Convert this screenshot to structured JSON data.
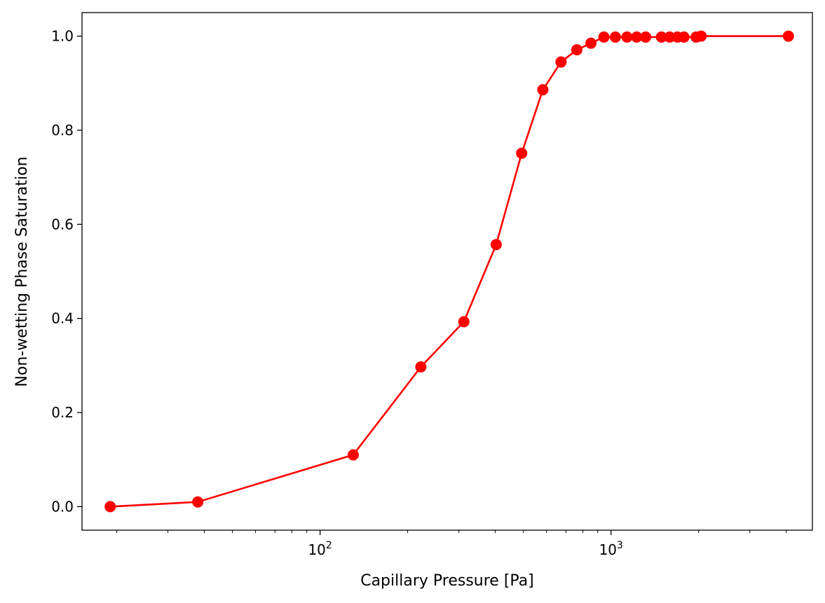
{
  "chart_data": {
    "type": "line",
    "title": "",
    "xlabel": "Capillary Pressure [Pa]",
    "ylabel": "Non-wetting Phase Saturation",
    "xscale": "log",
    "xlim": [
      15.2,
      4920
    ],
    "ylim": [
      -0.05,
      1.05
    ],
    "x_tick_labels": [
      {
        "base": "10",
        "exp": "2",
        "value": 100
      },
      {
        "base": "10",
        "exp": "3",
        "value": 1000
      }
    ],
    "y_tick_labels": [
      "0.0",
      "0.2",
      "0.4",
      "0.6",
      "0.8",
      "1.0"
    ],
    "y_tick_values": [
      0.0,
      0.2,
      0.4,
      0.6,
      0.8,
      1.0
    ],
    "grid": false,
    "legend": "none",
    "series": [
      {
        "color": "#ff0000",
        "marker": "circle",
        "x": [
          19,
          38,
          130,
          222,
          312,
          403,
          493,
          583,
          673,
          763,
          853,
          945,
          1035,
          1135,
          1225,
          1315,
          1490,
          1590,
          1690,
          1780,
          1960,
          2040,
          4070
        ],
        "y": [
          0.0,
          0.01,
          0.11,
          0.297,
          0.393,
          0.557,
          0.751,
          0.886,
          0.945,
          0.971,
          0.985,
          0.998,
          0.998,
          0.998,
          0.998,
          0.998,
          0.998,
          0.998,
          0.998,
          0.998,
          0.998,
          1.0,
          1.0
        ]
      }
    ]
  }
}
